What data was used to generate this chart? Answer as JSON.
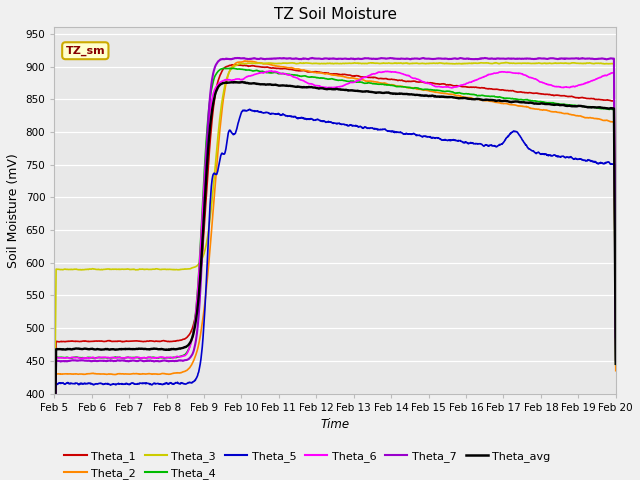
{
  "title": "TZ Soil Moisture",
  "xlabel": "Time",
  "ylabel": "Soil Moisture (mV)",
  "ylim": [
    400,
    960
  ],
  "yticks": [
    400,
    450,
    500,
    550,
    600,
    650,
    700,
    750,
    800,
    850,
    900,
    950
  ],
  "fig_bg": "#f0f0f0",
  "plot_bg": "#e8e8e8",
  "legend_label": "TZ_sm",
  "legend_box_fc": "#ffffcc",
  "legend_box_ec": "#ccaa00",
  "legend_text_color": "#880000",
  "series_colors": {
    "Theta_1": "#cc0000",
    "Theta_2": "#ff8800",
    "Theta_3": "#cccc00",
    "Theta_4": "#00bb00",
    "Theta_5": "#0000cc",
    "Theta_6": "#ff00ff",
    "Theta_7": "#9900cc",
    "Theta_avg": "#000000"
  },
  "x_labels": [
    "Feb 5",
    "Feb 6",
    "Feb 7",
    "Feb 8",
    "Feb 9",
    "Feb 10",
    "Feb 11",
    "Feb 12",
    "Feb 13",
    "Feb 14",
    "Feb 15",
    "Feb 16",
    "Feb 17",
    "Feb 18",
    "Feb 19",
    "Feb 20"
  ]
}
